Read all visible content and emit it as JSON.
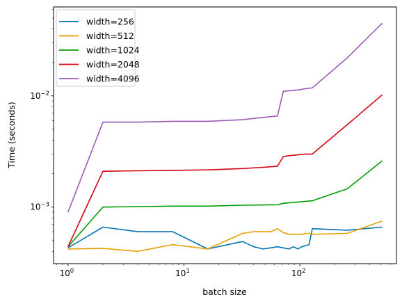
{
  "chart_data": {
    "type": "line",
    "title": "",
    "xlabel": "batch size",
    "ylabel": "Time (seconds)",
    "xscale": "log",
    "yscale": "log",
    "xlim": [
      0.75,
      680
    ],
    "ylim": [
      0.00031,
      0.063
    ],
    "grid": false,
    "legend_position": "top-left",
    "x_ticks": [
      {
        "value": 1,
        "base": "10",
        "exp": "0"
      },
      {
        "value": 10,
        "base": "10",
        "exp": "1"
      },
      {
        "value": 100,
        "base": "10",
        "exp": "2"
      }
    ],
    "y_ticks": [
      {
        "value": 0.001,
        "base": "10",
        "exp": "−3"
      },
      {
        "value": 0.01,
        "base": "10",
        "exp": "−2"
      }
    ],
    "series": [
      {
        "name": "width=256",
        "color": "#0072b2",
        "x": [
          1,
          2,
          4,
          8,
          16,
          32,
          40,
          48,
          56,
          64,
          72,
          80,
          88,
          96,
          104,
          112,
          120,
          128,
          256,
          512
        ],
        "y": [
          0.00043,
          0.00066,
          0.0006,
          0.0006,
          0.00042,
          0.00049,
          0.00044,
          0.00042,
          0.00043,
          0.00044,
          0.00043,
          0.00042,
          0.00044,
          0.00042,
          0.00044,
          0.00045,
          0.00046,
          0.00064,
          0.00062,
          0.00066
        ]
      },
      {
        "name": "width=512",
        "color": "#e69f00",
        "x": [
          1,
          2,
          4,
          8,
          16,
          32,
          40,
          48,
          56,
          64,
          72,
          80,
          88,
          96,
          104,
          112,
          120,
          128,
          256,
          512
        ],
        "y": [
          0.00042,
          0.000425,
          0.0004,
          0.00046,
          0.00042,
          0.00058,
          0.0006,
          0.0006,
          0.0006,
          0.00064,
          0.00059,
          0.00057,
          0.00057,
          0.00057,
          0.00057,
          0.00058,
          0.00058,
          0.00057,
          0.00058,
          0.00075
        ]
      },
      {
        "name": "width=1024",
        "color": "#009e00",
        "x": [
          1,
          2,
          4,
          8,
          16,
          32,
          64,
          72,
          96,
          128,
          256,
          512
        ],
        "y": [
          0.00044,
          0.001,
          0.00101,
          0.00102,
          0.00102,
          0.00104,
          0.00105,
          0.00108,
          0.00111,
          0.00114,
          0.00146,
          0.0026
        ]
      },
      {
        "name": "width=2048",
        "color": "#d40012",
        "x": [
          1,
          2,
          4,
          8,
          16,
          32,
          48,
          64,
          72,
          80,
          96,
          112,
          128,
          256,
          512
        ],
        "y": [
          0.00044,
          0.0021,
          0.00212,
          0.00214,
          0.00216,
          0.00222,
          0.00228,
          0.00233,
          0.00285,
          0.0029,
          0.00295,
          0.003,
          0.003,
          0.0055,
          0.0102
        ]
      },
      {
        "name": "width=4096",
        "color": "#9b59b6",
        "x": [
          1,
          2,
          4,
          8,
          16,
          32,
          48,
          64,
          72,
          80,
          96,
          112,
          128,
          256,
          512
        ],
        "y": [
          0.0009,
          0.0058,
          0.0058,
          0.0059,
          0.0059,
          0.0061,
          0.0064,
          0.0066,
          0.011,
          0.0111,
          0.0113,
          0.0116,
          0.0118,
          0.022,
          0.045
        ]
      }
    ]
  }
}
